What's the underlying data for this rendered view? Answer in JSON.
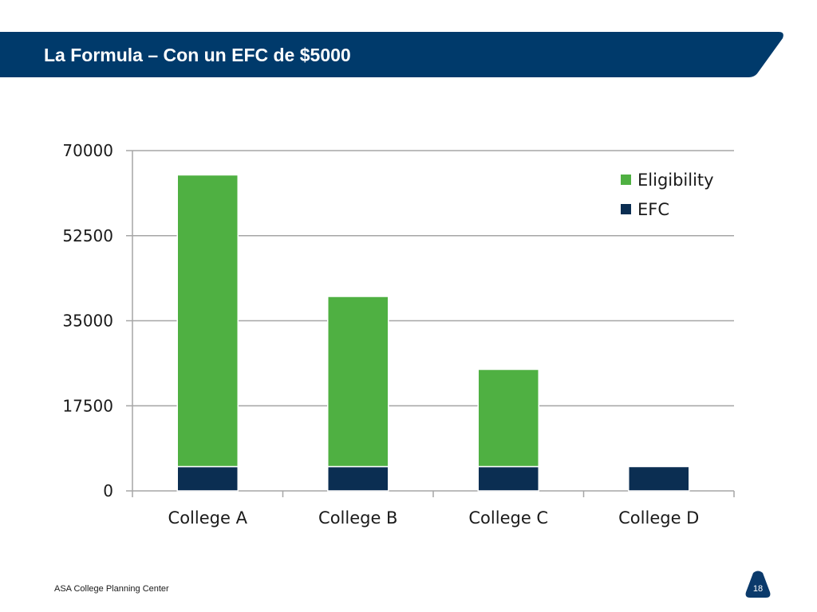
{
  "slide": {
    "title": "La Formula – Con un EFC de $5000",
    "footer": "ASA College Planning Center",
    "page_number": "18"
  },
  "colors": {
    "banner": "#003a6b",
    "eligibility": "#4fb042",
    "efc": "#0b2e52",
    "gridline": "#a6a6a6"
  },
  "chart_data": {
    "type": "bar",
    "stacked": true,
    "categories": [
      "College A",
      "College B",
      "College C",
      "College D"
    ],
    "series": [
      {
        "name": "EFC",
        "values": [
          5000,
          5000,
          5000,
          5000
        ],
        "color": "#0b2e52"
      },
      {
        "name": "Eligibility",
        "values": [
          60000,
          35000,
          20000,
          0
        ],
        "color": "#4fb042"
      }
    ],
    "ylim": [
      0,
      70000
    ],
    "yticks": [
      "0",
      "17500",
      "35000",
      "52500",
      "70000"
    ],
    "ytick_values": [
      0,
      17500,
      35000,
      52500,
      70000
    ],
    "grid": true,
    "legend": {
      "position": "top-right",
      "entries": [
        {
          "label": "Eligibility",
          "color": "#4fb042"
        },
        {
          "label": "EFC",
          "color": "#0b2e52"
        }
      ]
    }
  }
}
